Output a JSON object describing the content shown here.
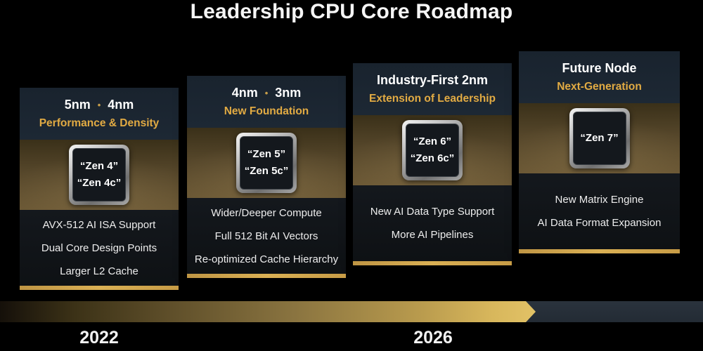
{
  "title": "Leadership CPU Core Roadmap",
  "colors": {
    "background": "#000000",
    "card_header_bg": "#1c2733",
    "card_body_bg": "#101418",
    "gold_accent_text": "#e2ab43",
    "gold_underline": "#d5aa4f",
    "timeline_gold": "#d8b75c",
    "timeline_slate": "#28313b",
    "chip_silver": "#c9c9c9"
  },
  "cards": [
    {
      "node_left": "5nm",
      "separator": "•",
      "node_right": "4nm",
      "tagline": "Performance & Density",
      "chip_lines": [
        "“Zen 4”",
        "“Zen 4c”"
      ],
      "features": [
        "AVX-512 AI ISA Support",
        "Dual Core Design Points",
        "Larger L2 Cache"
      ]
    },
    {
      "node_left": "4nm",
      "separator": "•",
      "node_right": "3nm",
      "tagline": "New Foundation",
      "chip_lines": [
        "“Zen 5”",
        "“Zen 5c”"
      ],
      "features": [
        "Wider/Deeper Compute",
        "Full 512 Bit AI Vectors",
        "Re-optimized Cache Hierarchy"
      ]
    },
    {
      "heading": "Industry-First 2nm",
      "tagline": "Extension of Leadership",
      "chip_lines": [
        "“Zen 6”",
        "“Zen 6c”"
      ],
      "features": [
        "New AI Data Type Support",
        "More AI Pipelines"
      ]
    },
    {
      "heading": "Future Node",
      "tagline": "Next-Generation",
      "chip_lines": [
        "“Zen 7”"
      ],
      "features": [
        "New Matrix Engine",
        "AI Data Format Expansion"
      ]
    }
  ],
  "timeline": {
    "years": [
      "2022",
      "2026"
    ]
  }
}
